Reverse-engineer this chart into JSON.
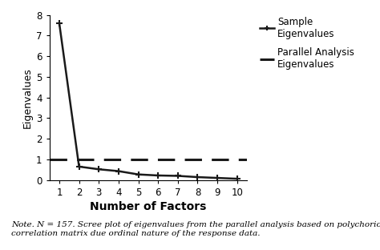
{
  "x": [
    1,
    2,
    3,
    4,
    5,
    6,
    7,
    8,
    9,
    10
  ],
  "sample_eigenvalues": [
    7.6,
    0.65,
    0.52,
    0.43,
    0.27,
    0.22,
    0.2,
    0.14,
    0.1,
    0.06
  ],
  "parallel_eigenvalue": 1.0,
  "xlabel": "Number of Factors",
  "ylabel": "Eigenvalues",
  "ylim": [
    0,
    8
  ],
  "xlim": [
    0.5,
    10.5
  ],
  "yticks": [
    0,
    1,
    2,
    3,
    4,
    5,
    6,
    7,
    8
  ],
  "xticks": [
    1,
    2,
    3,
    4,
    5,
    6,
    7,
    8,
    9,
    10
  ],
  "legend_sample": "Sample\nEigenvalues",
  "legend_parallel": "Parallel Analysis\nEigenvalues",
  "note_text": "Note. N = 157. Scree plot of eigenvalues from the parallel analysis based on polychoric\ncorrelation matrix due ordinal nature of the response data.",
  "line_color": "#1a1a1a",
  "background_color": "#ffffff",
  "xlabel_fontsize": 10,
  "ylabel_fontsize": 9,
  "tick_fontsize": 8.5,
  "legend_fontsize": 8.5,
  "note_fontsize": 7.5
}
